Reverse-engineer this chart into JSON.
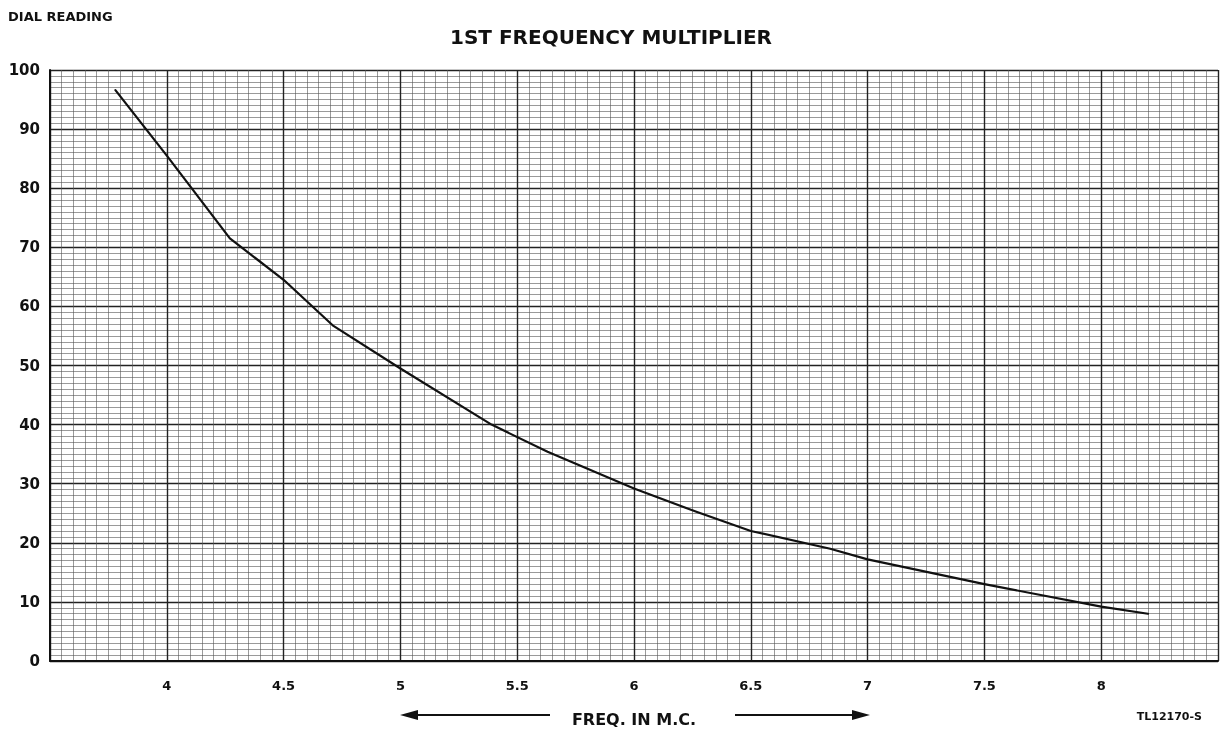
{
  "chart_data": {
    "type": "line",
    "title": "1ST FREQUENCY MULTIPLIER",
    "ylabel": "DIAL READING",
    "xlabel": "FREQ. IN M.C.",
    "annotations": [
      "TL12170-S"
    ],
    "x": [
      3.78,
      4,
      4.27,
      4.5,
      4.71,
      5,
      5.39,
      5.63,
      6,
      6.27,
      6.5,
      6.84,
      7,
      7.5,
      8,
      8.2
    ],
    "series": [
      {
        "color": "#111111",
        "values": [
          96.6,
          85.5,
          71.5,
          64.5,
          56.8,
          49.5,
          40,
          35.4,
          29.2,
          25.2,
          22,
          19,
          17.2,
          13,
          9.2,
          8
        ]
      }
    ],
    "xlim": [
      3.5,
      8.5
    ],
    "xticks": [
      4,
      4.5,
      5,
      5.5,
      6,
      6.5,
      7,
      7.5,
      8
    ],
    "ylim": [
      0,
      100
    ],
    "yticks": [
      0,
      10,
      20,
      30,
      40,
      50,
      60,
      70,
      80,
      90,
      100
    ],
    "grid": true,
    "marker": "none",
    "line_style": "solid"
  }
}
